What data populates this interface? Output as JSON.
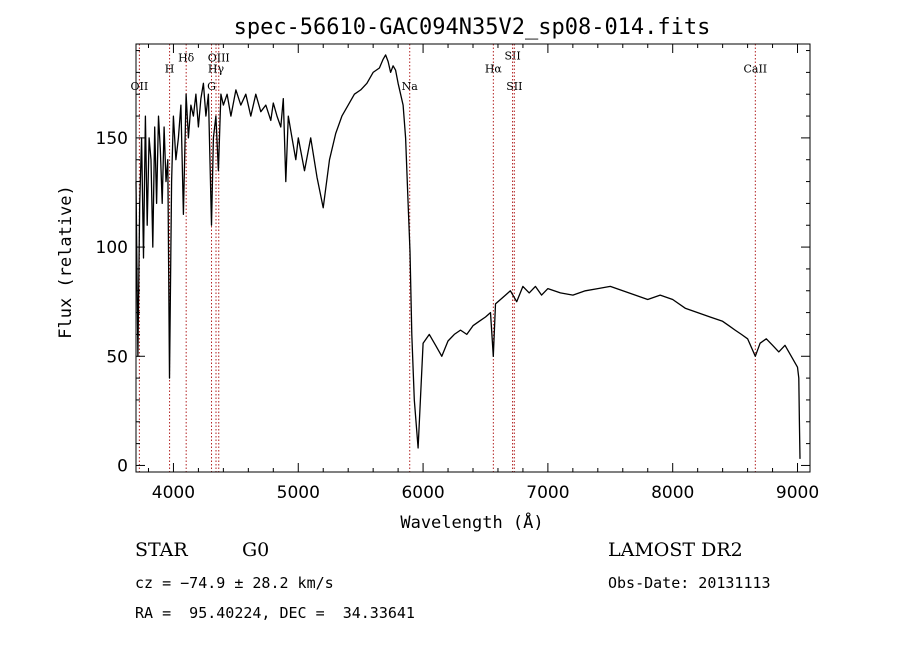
{
  "chart_data": {
    "type": "line",
    "title": "spec-56610-GAC094N35V2_sp08-014.fits",
    "xlabel": "Wavelength (Å)",
    "ylabel": "Flux (relative)",
    "xlim": [
      3700,
      9100
    ],
    "ylim": [
      -3,
      193
    ],
    "xticks": [
      4000,
      5000,
      6000,
      7000,
      8000,
      9000
    ],
    "yticks": [
      0,
      50,
      100,
      150
    ],
    "grid": false,
    "line_color": "#000000",
    "marker_color": "#b22222",
    "spectral_lines": [
      {
        "label": "OII",
        "wavelength": 3727,
        "label_y": 172
      },
      {
        "label": "H",
        "wavelength": 3969,
        "label_y": 180
      },
      {
        "label": "Hδ",
        "wavelength": 4102,
        "label_y": 185
      },
      {
        "label": "G",
        "wavelength": 4305,
        "label_y": 172
      },
      {
        "label": "OIII",
        "wavelength": 4363,
        "label_y": 185
      },
      {
        "label": "Hγ",
        "wavelength": 4341,
        "label_y": 180
      },
      {
        "label": "Na",
        "wavelength": 5893,
        "label_y": 172
      },
      {
        "label": "Hα",
        "wavelength": 6563,
        "label_y": 180
      },
      {
        "label": "SII",
        "wavelength": 6717,
        "label_y": 186
      },
      {
        "label": "SII",
        "wavelength": 6731,
        "label_y": 172
      },
      {
        "label": "CaII",
        "wavelength": 8662,
        "label_y": 180
      }
    ],
    "x": [
      3700,
      3715,
      3730,
      3745,
      3760,
      3775,
      3790,
      3805,
      3820,
      3835,
      3850,
      3865,
      3880,
      3895,
      3910,
      3925,
      3940,
      3955,
      3968,
      3985,
      4000,
      4020,
      4040,
      4060,
      4080,
      4101,
      4120,
      4140,
      4160,
      4180,
      4200,
      4220,
      4240,
      4260,
      4280,
      4305,
      4320,
      4340,
      4360,
      4380,
      4400,
      4430,
      4460,
      4500,
      4540,
      4580,
      4620,
      4660,
      4700,
      4740,
      4780,
      4800,
      4830,
      4860,
      4880,
      4900,
      4920,
      4950,
      4980,
      5000,
      5050,
      5100,
      5150,
      5200,
      5250,
      5300,
      5350,
      5400,
      5450,
      5500,
      5550,
      5600,
      5650,
      5680,
      5700,
      5720,
      5740,
      5760,
      5780,
      5800,
      5820,
      5840,
      5860,
      5880,
      5895,
      5910,
      5930,
      5960,
      6000,
      6050,
      6100,
      6150,
      6200,
      6250,
      6300,
      6350,
      6400,
      6450,
      6500,
      6540,
      6563,
      6580,
      6620,
      6660,
      6700,
      6750,
      6800,
      6850,
      6900,
      6950,
      7000,
      7100,
      7200,
      7300,
      7400,
      7500,
      7600,
      7700,
      7800,
      7900,
      8000,
      8100,
      8200,
      8300,
      8400,
      8450,
      8500,
      8550,
      8600,
      8662,
      8700,
      8750,
      8800,
      8850,
      8900,
      8950,
      8980,
      9000,
      9010,
      9015,
      9020
    ],
    "y": [
      130,
      50,
      120,
      150,
      95,
      160,
      110,
      150,
      140,
      100,
      155,
      120,
      160,
      145,
      120,
      155,
      130,
      140,
      40,
      130,
      160,
      140,
      150,
      165,
      115,
      170,
      150,
      165,
      160,
      170,
      155,
      168,
      175,
      160,
      170,
      110,
      150,
      160,
      135,
      170,
      165,
      170,
      160,
      172,
      165,
      170,
      160,
      170,
      162,
      165,
      158,
      166,
      160,
      155,
      168,
      130,
      160,
      150,
      140,
      150,
      135,
      150,
      132,
      118,
      140,
      152,
      160,
      165,
      170,
      172,
      175,
      180,
      182,
      186,
      188,
      185,
      180,
      183,
      181,
      175,
      170,
      165,
      150,
      120,
      98,
      60,
      30,
      8,
      56,
      60,
      55,
      50,
      57,
      60,
      62,
      60,
      64,
      66,
      68,
      70,
      50,
      74,
      76,
      78,
      80,
      75,
      82,
      79,
      82,
      78,
      81,
      79,
      78,
      80,
      81,
      82,
      80,
      78,
      76,
      78,
      76,
      72,
      70,
      68,
      66,
      64,
      62,
      60,
      58,
      50,
      56,
      58,
      55,
      52,
      55,
      50,
      47,
      45,
      40,
      20,
      3
    ]
  },
  "info": {
    "object_type": "STAR",
    "subclass": "G0",
    "survey": "LAMOST DR2",
    "cz": "cz = −74.9 ± 28.2 km/s",
    "obs_date": "Obs-Date: 20131113",
    "coords": "RA =  95.40224, DEC =  34.33641"
  }
}
